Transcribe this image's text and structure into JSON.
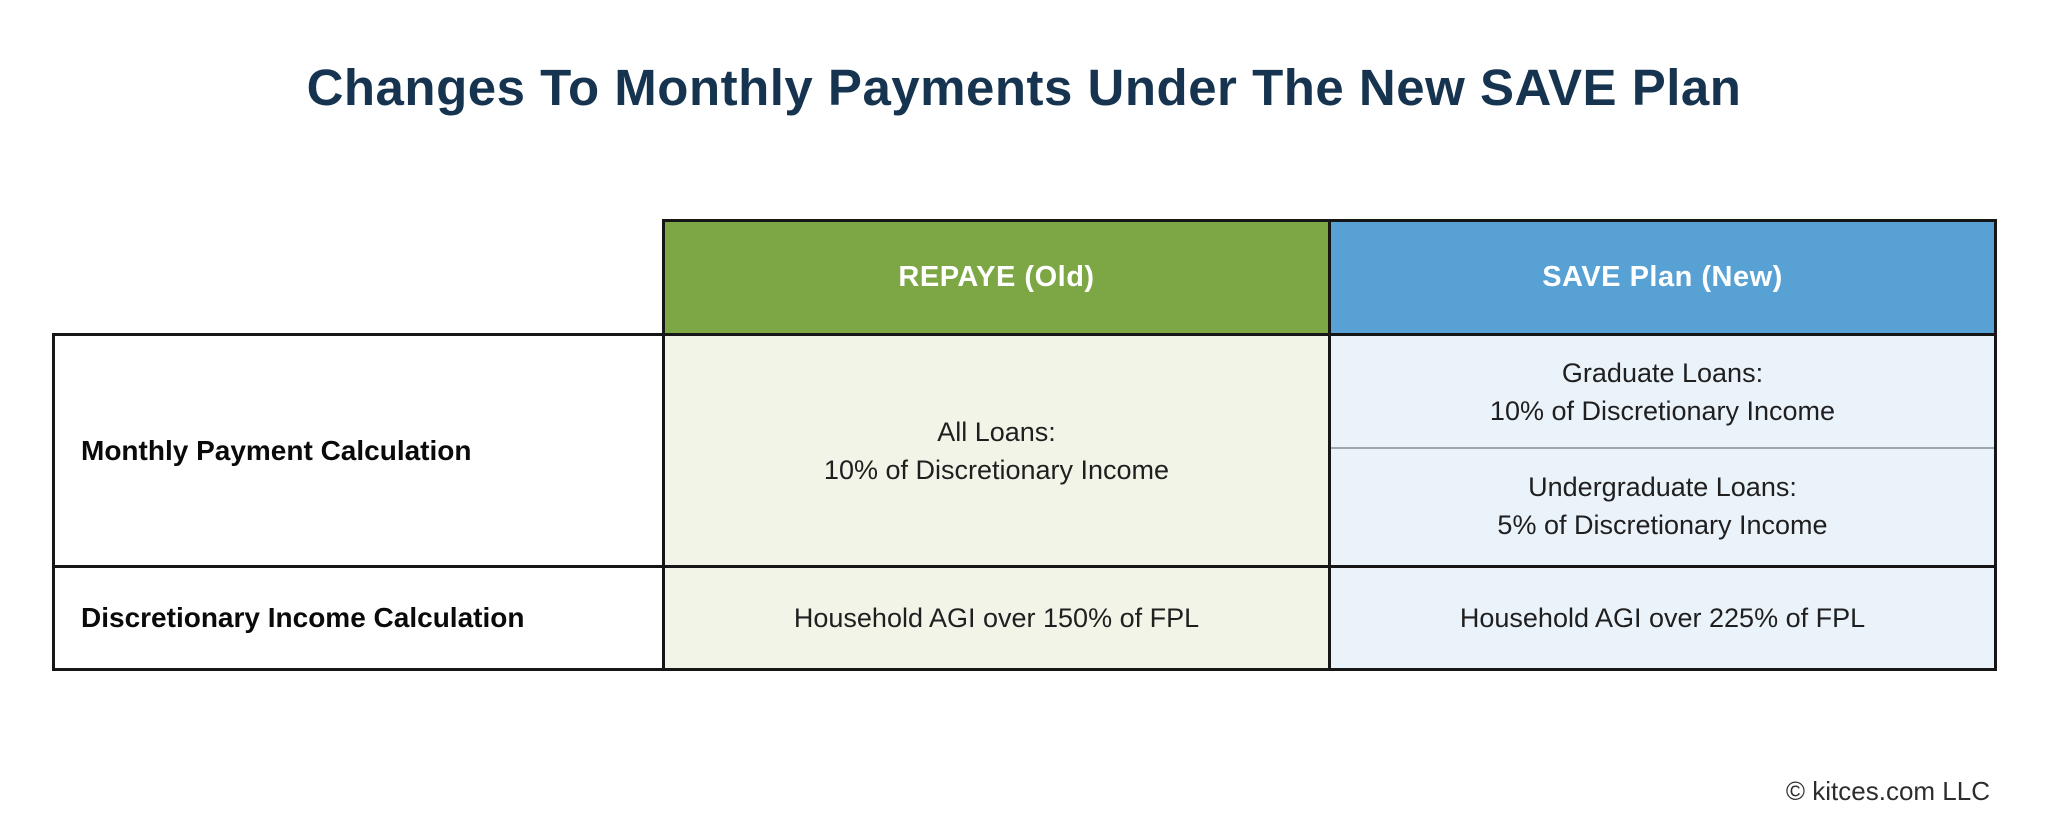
{
  "title": "Changes To Monthly Payments Under The New SAVE Plan",
  "copyright": "© kitces.com LLC",
  "colors": {
    "title_navy": "#16344f",
    "repaye_green": "#7da644",
    "save_blue": "#58a1d5",
    "repaye_cell_bg": "#f2f4e8",
    "save_cell_bg": "#eaf2fa",
    "border_black": "#161616",
    "subrow_divider_gray": "#9fa7ae",
    "header_text": "#ffffff"
  },
  "table": {
    "column_headers": [
      {
        "label": "REPAYE (Old)"
      },
      {
        "label": "SAVE Plan (New)"
      }
    ],
    "rows": [
      {
        "label": "Monthly Payment Calculation",
        "repaye_lines": [
          "All Loans:",
          "10% of Discretionary Income"
        ],
        "save_subrows": [
          {
            "lines": [
              "Graduate Loans:",
              "10% of Discretionary Income"
            ]
          },
          {
            "lines": [
              "Undergraduate Loans:",
              "5% of Discretionary Income"
            ]
          }
        ]
      },
      {
        "label": "Discretionary Income Calculation",
        "repaye_lines": [
          "Household AGI over 150% of FPL"
        ],
        "save_lines": [
          "Household AGI over 225% of FPL"
        ]
      }
    ]
  },
  "chart_data": {
    "type": "table",
    "title": "Changes To Monthly Payments Under The New SAVE Plan",
    "columns": [
      "",
      "REPAYE (Old)",
      "SAVE Plan (New)"
    ],
    "rows": [
      [
        "Monthly Payment Calculation",
        "All Loans: 10% of Discretionary Income",
        "Graduate Loans: 10% of Discretionary Income; Undergraduate Loans: 5% of Discretionary Income"
      ],
      [
        "Discretionary Income Calculation",
        "Household AGI over 150% of FPL",
        "Household AGI over 225% of FPL"
      ]
    ],
    "legend_position": "none",
    "source": "© kitces.com LLC"
  }
}
